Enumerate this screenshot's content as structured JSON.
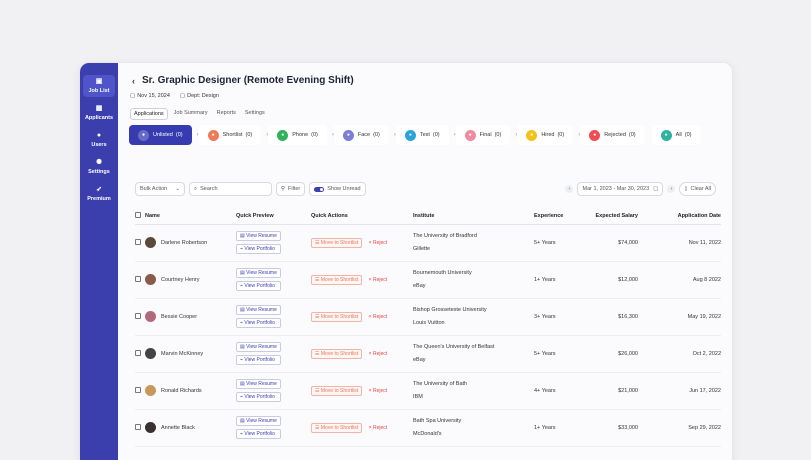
{
  "sidebar": {
    "items": [
      {
        "label": "Job List",
        "icon": "briefcase-icon"
      },
      {
        "label": "Applicants",
        "icon": "grid-icon"
      },
      {
        "label": "Users",
        "icon": "users-icon"
      },
      {
        "label": "Settings",
        "icon": "gear-icon"
      },
      {
        "label": "Premium",
        "icon": "rocket-icon"
      }
    ]
  },
  "header": {
    "title": "Sr. Graphic Designer (Remote Evening Shift)",
    "date": "Nov 15, 2024",
    "dept": "Dept: Design"
  },
  "tabs": [
    "Applications",
    "Job Summary",
    "Reports",
    "Settings"
  ],
  "stages": [
    {
      "label": "Unlisted",
      "count": "(0)",
      "color": "#ffffff"
    },
    {
      "label": "Shortlist",
      "count": "(0)",
      "color": "#ef7a5a"
    },
    {
      "label": "Phone",
      "count": "(0)",
      "color": "#2fb35a"
    },
    {
      "label": "Face",
      "count": "(0)",
      "color": "#7b7fd8"
    },
    {
      "label": "Test",
      "count": "(0)",
      "color": "#2aa4d8"
    },
    {
      "label": "Final",
      "count": "(0)",
      "color": "#f08aa0"
    },
    {
      "label": "Hired",
      "count": "(0)",
      "color": "#f2c21a"
    },
    {
      "label": "Rejected",
      "count": "(0)",
      "color": "#ef4d55"
    },
    {
      "label": "All",
      "count": "(0)",
      "color": "#2cb4a0"
    }
  ],
  "toolbar": {
    "bulk": "Bulk Action",
    "search_placeholder": "Search",
    "filter": "Filter",
    "show_unread": "Show Unread",
    "date_range": "Mar 1, 2023 - Mar 30, 2023",
    "clear": "Clear All"
  },
  "table": {
    "headers": {
      "name": "Name",
      "preview": "Quick Preview",
      "actions": "Quick Actions",
      "institute": "Institute",
      "experience": "Experience",
      "salary": "Expected Salary",
      "date": "Application Date"
    },
    "view_resume": "View Resume",
    "view_portfolio": "View Portfolio",
    "move": "Move to Shortlist",
    "reject": "Reject",
    "rows": [
      {
        "name": "Darlene Robertson",
        "inst1": "The University of Bradford",
        "inst2": "Gillette",
        "exp": "5+ Years",
        "salary": "$74,000",
        "date": "Nov 11, 2022",
        "avatar": "#5a4a3a"
      },
      {
        "name": "Courtney Henry",
        "inst1": "Bournemouth University",
        "inst2": "eBay",
        "exp": "1+ Years",
        "salary": "$12,000",
        "date": "Aug 8 2022",
        "avatar": "#8a5a4a"
      },
      {
        "name": "Bessie Cooper",
        "inst1": "Bishop Grosseteste University",
        "inst2": "Louis Vuitton",
        "exp": "3+ Years",
        "salary": "$16,300",
        "date": "May 19, 2022",
        "avatar": "#b06a7a"
      },
      {
        "name": "Marvin McKinney",
        "inst1": "The Queen's University of Belfast",
        "inst2": "eBay",
        "exp": "5+ Years",
        "salary": "$26,000",
        "date": "Oct 2, 2022",
        "avatar": "#444444"
      },
      {
        "name": "Ronald Richards",
        "inst1": "The University of Bath",
        "inst2": "IBM",
        "exp": "4+ Years",
        "salary": "$21,000",
        "date": "Jun 17, 2022",
        "avatar": "#c89a5a"
      },
      {
        "name": "Annette Black",
        "inst1": "Bath Spa University",
        "inst2": "McDonald's",
        "exp": "1+ Years",
        "salary": "$33,000",
        "date": "Sep 29, 2022",
        "avatar": "#3a3030"
      }
    ]
  }
}
